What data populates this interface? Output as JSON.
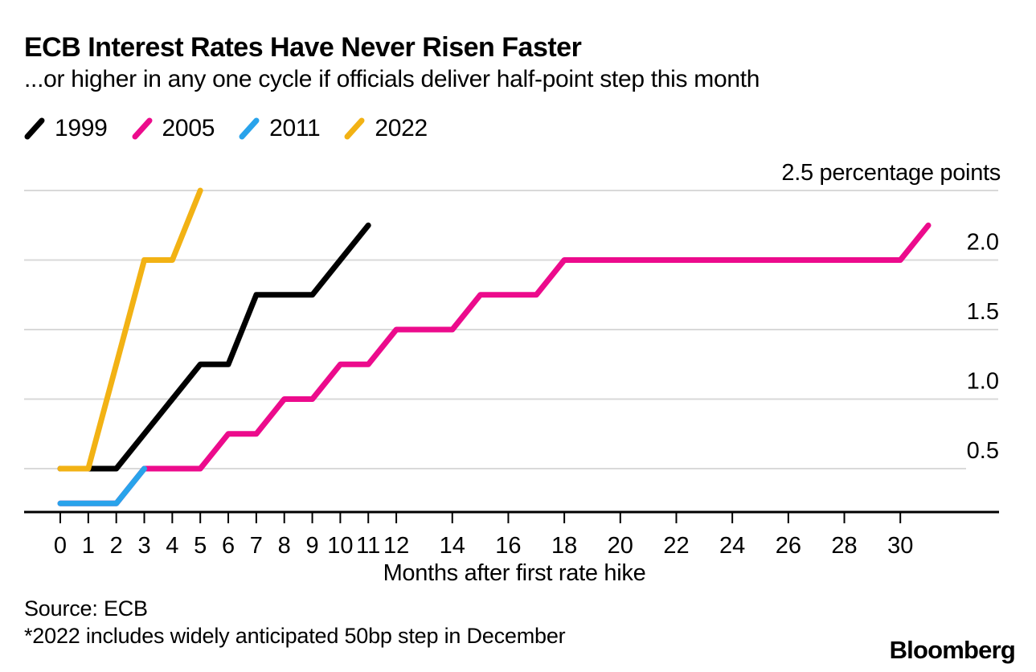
{
  "header": {
    "title": "ECB Interest Rates Have Never Risen Faster",
    "subtitle": "...or higher in any one cycle if officials deliver half-point step this month"
  },
  "legend": [
    {
      "label": "1999",
      "color": "#000000"
    },
    {
      "label": "2005",
      "color": "#ec0b8c"
    },
    {
      "label": "2011",
      "color": "#29a3eb"
    },
    {
      "label": "2022",
      "color": "#f2b214"
    }
  ],
  "chart_data": {
    "type": "line",
    "title": "ECB Interest Rates Have Never Risen Faster",
    "subtitle": "...or higher in any one cycle if officials deliver half-point step this month",
    "xlabel": "Months after first rate hike",
    "ylabel": "",
    "unit_label": "2.5 percentage points",
    "x_ticks": [
      0,
      1,
      2,
      3,
      4,
      5,
      6,
      7,
      8,
      9,
      10,
      11,
      12,
      14,
      16,
      18,
      20,
      22,
      24,
      26,
      28,
      30
    ],
    "x_tick_labels": [
      "0",
      "1",
      "2",
      "3",
      "4",
      "5",
      "6",
      "7",
      "8",
      "9",
      "10",
      "11",
      "12",
      "14",
      "16",
      "18",
      "20",
      "22",
      "24",
      "26",
      "28",
      "30"
    ],
    "y_gridlines": [
      0.5,
      1.0,
      1.5,
      2.0,
      2.5
    ],
    "y_tick_labels": [
      {
        "value": 0.5,
        "label": "0.5"
      },
      {
        "value": 1.0,
        "label": "1.0"
      },
      {
        "value": 1.5,
        "label": "1.5"
      },
      {
        "value": 2.0,
        "label": "2.0"
      }
    ],
    "xlim": [
      0,
      31.5
    ],
    "ylim": [
      0.18,
      2.7
    ],
    "grid": true,
    "legend_position": "top-left",
    "x_unit": "months after first rate hike (monthly values, starting at month 0)",
    "y_unit": "cumulative rate increase, percentage points",
    "series": [
      {
        "name": "1999",
        "color": "#000000",
        "start_month": 0,
        "values": [
          0.5,
          0.5,
          0.5,
          0.75,
          1.0,
          1.25,
          1.25,
          1.75,
          1.75,
          1.75,
          2.0,
          2.25
        ]
      },
      {
        "name": "2005",
        "color": "#ec0b8c",
        "start_month": 0,
        "values": [
          0.25,
          0.25,
          0.25,
          0.5,
          0.5,
          0.5,
          0.75,
          0.75,
          1.0,
          1.0,
          1.25,
          1.25,
          1.5,
          1.5,
          1.5,
          1.75,
          1.75,
          1.75,
          2.0,
          2.0,
          2.0,
          2.0,
          2.0,
          2.0,
          2.0,
          2.0,
          2.0,
          2.0,
          2.0,
          2.0,
          2.0,
          2.25
        ]
      },
      {
        "name": "2011",
        "color": "#29a3eb",
        "start_month": 0,
        "values": [
          0.25,
          0.25,
          0.25,
          0.5
        ]
      },
      {
        "name": "2022",
        "color": "#f2b214",
        "start_month": 0,
        "values": [
          0.5,
          0.5,
          1.25,
          2.0,
          2.0,
          2.5
        ]
      }
    ],
    "draw_order": [
      "2005",
      "1999",
      "2011",
      "2022"
    ]
  },
  "footer": {
    "source": "Source: ECB",
    "note": "*2022 includes widely anticipated 50bp step in December",
    "brand": "Bloomberg"
  }
}
